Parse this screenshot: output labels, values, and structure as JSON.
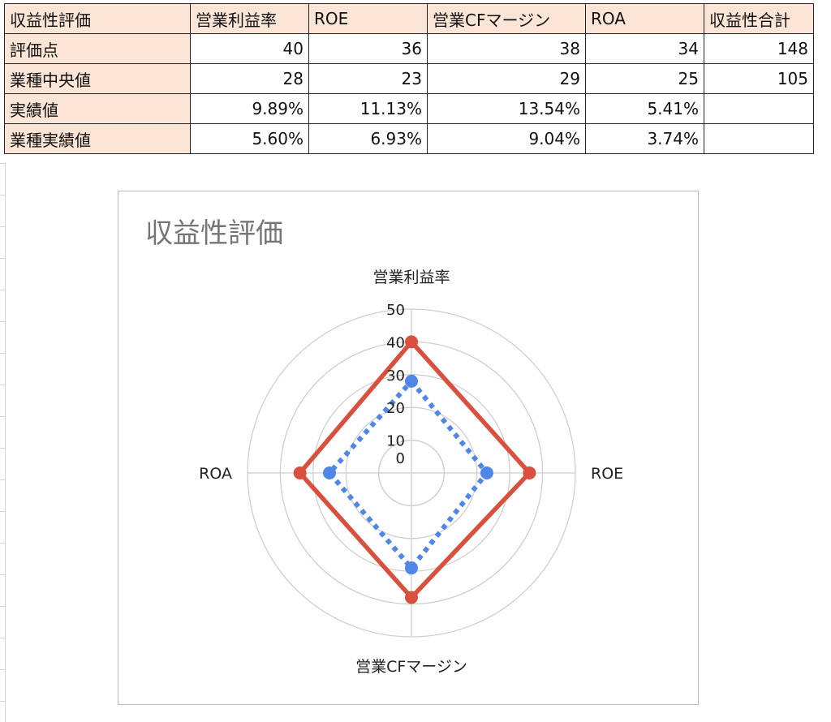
{
  "table": {
    "header": [
      "収益性評価",
      "営業利益率",
      "ROE",
      "営業CFマージン",
      "ROA",
      "収益性合計"
    ],
    "rows": [
      {
        "label": "評価点",
        "cells": [
          "40",
          "36",
          "38",
          "34",
          "148"
        ]
      },
      {
        "label": "業種中央値",
        "cells": [
          "28",
          "23",
          "29",
          "25",
          "105"
        ]
      },
      {
        "label": "実績値",
        "cells": [
          "9.89%",
          "11.13%",
          "13.54%",
          "5.41%",
          ""
        ]
      },
      {
        "label": "業種実績値",
        "cells": [
          "5.60%",
          "6.93%",
          "9.04%",
          "3.74%",
          ""
        ]
      }
    ]
  },
  "chart_data": {
    "type": "radar",
    "title": "収益性評価",
    "categories": [
      "営業利益率",
      "ROE",
      "営業CFマージン",
      "ROA"
    ],
    "rlim": [
      0,
      50
    ],
    "ticks": [
      0,
      10,
      20,
      30,
      40,
      50
    ],
    "tick_labels": [
      "0",
      "10",
      "20",
      "30",
      "40",
      "50"
    ],
    "grid": true,
    "legend": "none",
    "series": [
      {
        "values": [
          40,
          36,
          38,
          34
        ],
        "color": "#d9503f",
        "line": "solid"
      },
      {
        "values": [
          28,
          23,
          29,
          25
        ],
        "color": "#4f86e8",
        "line": "dotted"
      }
    ]
  }
}
